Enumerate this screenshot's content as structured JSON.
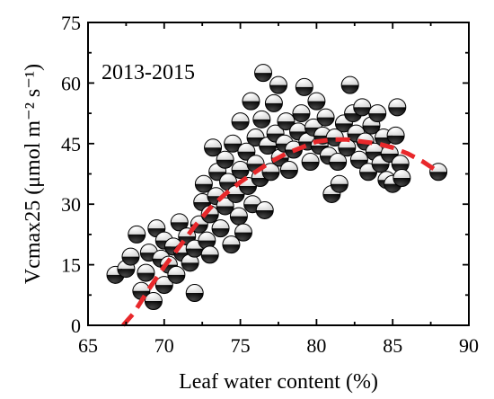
{
  "chart_data": {
    "type": "scatter",
    "title": "",
    "annotation": "2013-2015",
    "xlabel": "Leaf water content (%)",
    "ylabel": "Vcmax25 (μmol m⁻² s⁻¹)",
    "xlim": [
      65,
      90
    ],
    "ylim": [
      0,
      75
    ],
    "xticks": [
      65,
      70,
      75,
      80,
      85,
      90
    ],
    "yticks": [
      0,
      15,
      30,
      45,
      60,
      75
    ],
    "grid": false,
    "legend": "none",
    "marker": "half-filled circle (black lower half)",
    "fit_color": "#e8282b",
    "fit_style": "dashed",
    "points": [
      [
        66.8,
        12.5
      ],
      [
        67.5,
        14.0
      ],
      [
        67.8,
        17.0
      ],
      [
        68.2,
        22.5
      ],
      [
        68.5,
        8.5
      ],
      [
        68.8,
        13.0
      ],
      [
        69.0,
        18.0
      ],
      [
        69.3,
        6.0
      ],
      [
        69.5,
        24.0
      ],
      [
        69.8,
        16.5
      ],
      [
        70.0,
        21.0
      ],
      [
        70.0,
        10.0
      ],
      [
        70.3,
        15.0
      ],
      [
        70.6,
        19.5
      ],
      [
        70.8,
        12.5
      ],
      [
        71.0,
        25.5
      ],
      [
        71.2,
        18.0
      ],
      [
        71.5,
        22.0
      ],
      [
        71.7,
        15.5
      ],
      [
        72.0,
        19.0
      ],
      [
        72.0,
        8.0
      ],
      [
        72.3,
        25.0
      ],
      [
        72.5,
        30.5
      ],
      [
        72.6,
        35.0
      ],
      [
        72.8,
        21.0
      ],
      [
        73.0,
        17.5
      ],
      [
        73.0,
        27.5
      ],
      [
        73.2,
        44.0
      ],
      [
        73.4,
        32.0
      ],
      [
        73.5,
        38.0
      ],
      [
        73.7,
        24.0
      ],
      [
        74.0,
        29.5
      ],
      [
        74.0,
        41.0
      ],
      [
        74.2,
        35.5
      ],
      [
        74.4,
        20.0
      ],
      [
        74.5,
        45.0
      ],
      [
        74.7,
        32.5
      ],
      [
        74.9,
        27.0
      ],
      [
        75.0,
        38.5
      ],
      [
        75.0,
        50.5
      ],
      [
        75.2,
        23.0
      ],
      [
        75.4,
        43.0
      ],
      [
        75.5,
        34.5
      ],
      [
        75.7,
        55.5
      ],
      [
        75.8,
        30.0
      ],
      [
        76.0,
        46.5
      ],
      [
        76.0,
        40.0
      ],
      [
        76.3,
        36.5
      ],
      [
        76.4,
        51.0
      ],
      [
        76.5,
        62.5
      ],
      [
        76.6,
        28.5
      ],
      [
        76.8,
        44.5
      ],
      [
        77.0,
        38.0
      ],
      [
        77.2,
        55.0
      ],
      [
        77.3,
        47.5
      ],
      [
        77.5,
        59.5
      ],
      [
        77.6,
        41.5
      ],
      [
        77.9,
        45.0
      ],
      [
        78.0,
        50.5
      ],
      [
        78.2,
        38.5
      ],
      [
        78.5,
        43.5
      ],
      [
        78.8,
        48.0
      ],
      [
        79.0,
        52.5
      ],
      [
        79.2,
        59.0
      ],
      [
        79.4,
        45.5
      ],
      [
        79.6,
        40.5
      ],
      [
        79.8,
        49.0
      ],
      [
        80.0,
        55.5
      ],
      [
        80.2,
        44.5
      ],
      [
        80.4,
        47.0
      ],
      [
        80.6,
        51.5
      ],
      [
        80.8,
        42.0
      ],
      [
        81.0,
        32.5
      ],
      [
        81.2,
        46.5
      ],
      [
        81.4,
        40.5
      ],
      [
        81.5,
        35.0
      ],
      [
        81.8,
        50.0
      ],
      [
        82.0,
        44.0
      ],
      [
        82.2,
        59.5
      ],
      [
        82.4,
        52.5
      ],
      [
        82.6,
        47.5
      ],
      [
        82.8,
        41.0
      ],
      [
        83.0,
        54.0
      ],
      [
        83.2,
        45.5
      ],
      [
        83.4,
        38.0
      ],
      [
        83.6,
        49.5
      ],
      [
        83.8,
        43.0
      ],
      [
        84.0,
        52.5
      ],
      [
        84.2,
        40.0
      ],
      [
        84.4,
        46.5
      ],
      [
        84.6,
        36.0
      ],
      [
        84.8,
        42.5
      ],
      [
        85.0,
        35.0
      ],
      [
        85.2,
        47.0
      ],
      [
        85.3,
        54.0
      ],
      [
        85.5,
        40.0
      ],
      [
        85.6,
        36.5
      ],
      [
        88.0,
        38.0
      ]
    ],
    "fit": {
      "x": [
        67.3,
        68.0,
        69.0,
        70.0,
        71.0,
        72.0,
        73.0,
        74.0,
        75.0,
        76.0,
        77.0,
        78.0,
        79.0,
        80.0,
        81.0,
        82.0,
        83.0,
        84.0,
        85.0,
        86.0,
        87.0,
        88.0
      ],
      "y": [
        0.0,
        3.0,
        9.0,
        14.5,
        19.5,
        24.5,
        29.0,
        32.5,
        35.5,
        38.0,
        40.5,
        42.5,
        44.0,
        45.5,
        46.0,
        46.0,
        45.5,
        45.0,
        44.0,
        42.5,
        40.5,
        38.0
      ]
    }
  }
}
